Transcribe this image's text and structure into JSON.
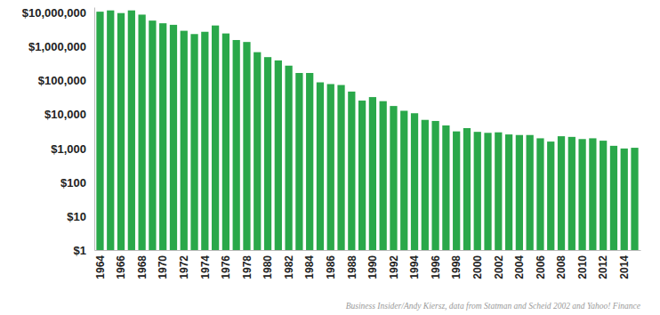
{
  "chart_data": {
    "type": "bar",
    "categories": [
      "1964",
      null,
      "1966",
      null,
      "1968",
      null,
      "1970",
      null,
      "1972",
      null,
      "1974",
      null,
      "1976",
      null,
      "1978",
      null,
      "1980",
      null,
      "1982",
      null,
      "1984",
      null,
      "1986",
      null,
      "1988",
      null,
      "1990",
      null,
      "1992",
      null,
      "1994",
      null,
      "1996",
      null,
      "1998",
      null,
      "2000",
      null,
      "2002",
      null,
      "2004",
      null,
      "2006",
      null,
      "2008",
      null,
      "2010",
      null,
      "2012",
      null,
      "2014",
      null
    ],
    "values": [
      11000000,
      12000000,
      10000000,
      12000000,
      9000000,
      6000000,
      5000000,
      4500000,
      3000000,
      2400000,
      2800000,
      4300000,
      2500000,
      1600000,
      1400000,
      700000,
      500000,
      400000,
      280000,
      170000,
      170000,
      90000,
      80000,
      75000,
      48000,
      26000,
      33000,
      25000,
      18000,
      13000,
      11000,
      7000,
      6500,
      4800,
      3200,
      4000,
      3100,
      2900,
      3000,
      2600,
      2500,
      2500,
      2000,
      1600,
      2300,
      2200,
      1900,
      2000,
      1700,
      1200,
      1000,
      1050
    ],
    "color": "#2aa84a",
    "log": "y",
    "grid": false,
    "ylim": [
      1,
      15000000
    ],
    "yticks": [
      {
        "value": 1,
        "label": "$1"
      },
      {
        "value": 10,
        "label": "$10"
      },
      {
        "value": 100,
        "label": "$100"
      },
      {
        "value": 1000,
        "label": "$1,000"
      },
      {
        "value": 10000,
        "label": "$10,000"
      },
      {
        "value": 100000,
        "label": "$100,000"
      },
      {
        "value": 1000000,
        "label": "$1,000,000"
      },
      {
        "value": 10000000,
        "label": "$10,000,000"
      }
    ],
    "annotations": [
      "Business Insider/Andy Kiersz, data from Statman and Scheid 2002 and Yahoo! Finance"
    ]
  }
}
